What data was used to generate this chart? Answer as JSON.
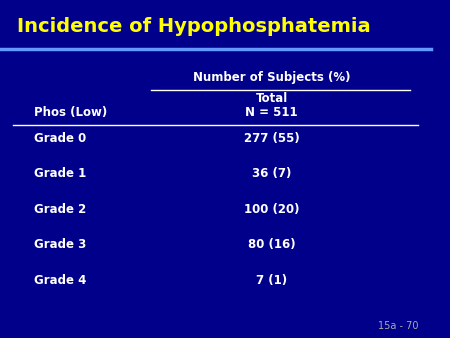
{
  "title": "Incidence of Hypophosphatemia",
  "title_color": "#FFFF00",
  "bg_color": "#00008B",
  "header_line_color": "#6699FF",
  "table_line_color": "#FFFFFF",
  "col_header": "Number of Subjects (%)",
  "col_subheader1": "Total",
  "col_subheader2": "N = 511",
  "row_header_label": "Phos (Low)",
  "header_text_color": "#FFFFFF",
  "data_text_color": "#FFFFFF",
  "row_label_color": "#FFFFFF",
  "grades": [
    "Grade 0",
    "Grade 1",
    "Grade 2",
    "Grade 3",
    "Grade 4"
  ],
  "values": [
    "277 (55)",
    "36 (7)",
    "100 (20)",
    "80 (16)",
    "7 (1)"
  ],
  "footer": "15a - 70",
  "footer_color": "#AAAAAA"
}
